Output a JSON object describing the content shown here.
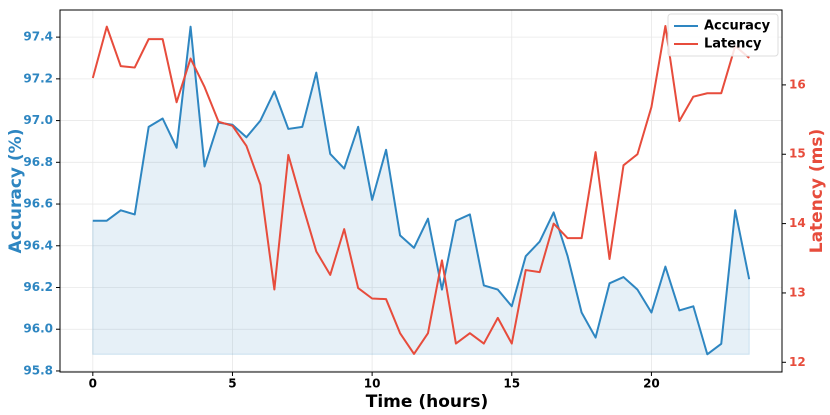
{
  "chart_data": {
    "type": "line",
    "x": [
      0,
      0.5,
      1,
      1.5,
      2,
      2.5,
      3,
      3.5,
      4,
      4.5,
      5,
      5.5,
      6,
      6.5,
      7,
      7.5,
      8,
      8.5,
      9,
      9.5,
      10,
      10.5,
      11,
      11.5,
      12,
      12.5,
      13,
      13.5,
      14,
      14.5,
      15,
      15.5,
      16,
      16.5,
      17,
      17.5,
      18,
      18.5,
      19,
      19.5,
      20,
      20.5,
      21,
      21.5,
      22,
      22.5,
      23,
      23.5
    ],
    "series": [
      {
        "name": "Accuracy",
        "color": "#2e86c1",
        "fill": true,
        "values": [
          96.52,
          96.52,
          96.57,
          96.55,
          96.97,
          97.01,
          96.87,
          97.45,
          96.78,
          96.99,
          96.98,
          96.92,
          97.0,
          97.14,
          96.96,
          96.97,
          97.23,
          96.84,
          96.77,
          96.97,
          96.62,
          96.86,
          96.45,
          96.39,
          96.53,
          96.19,
          96.52,
          96.55,
          96.21,
          96.19,
          96.11,
          96.35,
          96.42,
          96.56,
          96.35,
          96.08,
          95.96,
          96.22,
          96.25,
          96.19,
          96.08,
          96.3,
          96.09,
          96.11,
          95.88,
          95.93,
          96.57,
          96.24
        ]
      },
      {
        "name": "Latency",
        "color": "#e74c3c",
        "axis": "y2",
        "values": [
          16.1,
          16.84,
          16.27,
          16.25,
          16.66,
          16.66,
          15.75,
          16.38,
          15.97,
          15.47,
          15.41,
          15.12,
          14.56,
          13.05,
          14.99,
          14.28,
          13.6,
          13.26,
          13.92,
          13.07,
          12.92,
          12.91,
          12.42,
          12.12,
          12.42,
          13.47,
          12.27,
          12.42,
          12.27,
          12.64,
          12.27,
          13.33,
          13.3,
          14.0,
          13.79,
          13.79,
          15.03,
          13.49,
          14.84,
          15.0,
          15.68,
          16.85,
          15.48,
          15.83,
          15.88,
          15.88,
          16.56,
          16.39
        ]
      }
    ],
    "xlabel": "Time (hours)",
    "ylabel": "Accuracy (%)",
    "y2label": "Latency (ms)",
    "xlim": [
      -1.175,
      24.675
    ],
    "xticks": [
      0,
      5,
      10,
      15,
      20
    ],
    "ylim": [
      95.795,
      97.53
    ],
    "yticks": [
      95.8,
      {
        "value": 96.0,
        "label": "96.0"
      },
      96.2,
      96.4,
      96.6,
      96.8,
      {
        "value": 97.0,
        "label": "97.0"
      },
      97.2,
      97.4
    ],
    "y2lim": [
      11.86,
      17.08
    ],
    "y2ticks": [
      12,
      13,
      14,
      15,
      16
    ],
    "grid": true,
    "legend": "upper right"
  }
}
